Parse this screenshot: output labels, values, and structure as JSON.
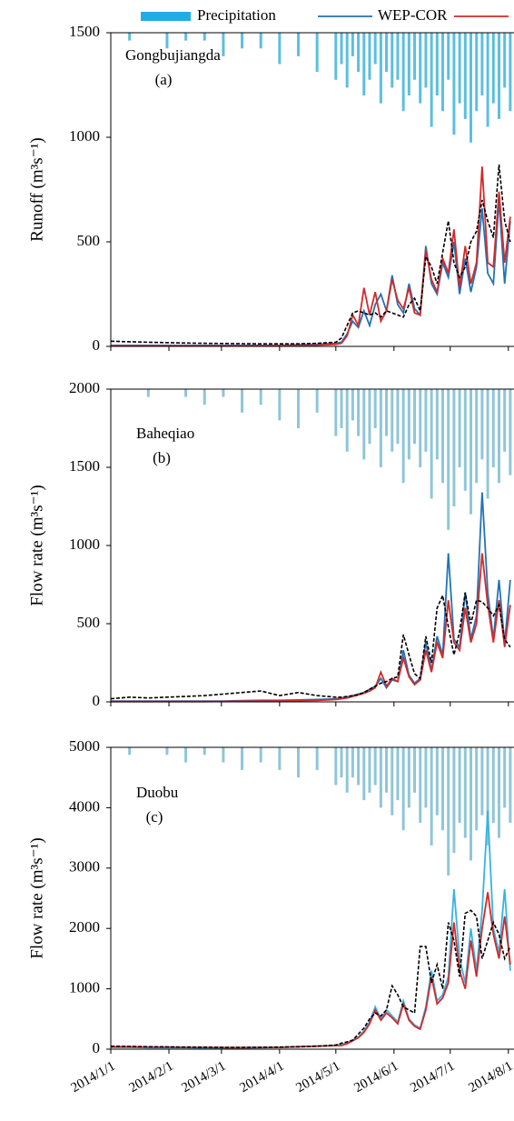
{
  "chart_data": [
    {
      "type": "line",
      "title": "Gongbujiangda",
      "subtitle": "(a)",
      "y_label": "Runoff (m³s⁻¹)",
      "ylim": [
        0,
        1500
      ],
      "yticks": [
        0,
        500,
        1000,
        1500
      ],
      "y2lim": [
        0,
        40
      ],
      "y2_inverted": true,
      "x": [
        "2014/1/1",
        "2014/1/11",
        "2014/1/21",
        "2014/1/31",
        "2014/2/10",
        "2014/2/20",
        "2014/3/2",
        "2014/3/12",
        "2014/3/22",
        "2014/4/1",
        "2014/4/11",
        "2014/4/21",
        "2014/5/1",
        "2014/5/4",
        "2014/5/7",
        "2014/5/10",
        "2014/5/13",
        "2014/5/16",
        "2014/5/19",
        "2014/5/22",
        "2014/5/25",
        "2014/5/28",
        "2014/5/31",
        "2014/6/3",
        "2014/6/6",
        "2014/6/9",
        "2014/6/12",
        "2014/6/15",
        "2014/6/18",
        "2014/6/21",
        "2014/6/24",
        "2014/6/27",
        "2014/6/30",
        "2014/7/3",
        "2014/7/6",
        "2014/7/9",
        "2014/7/12",
        "2014/7/15",
        "2014/7/18",
        "2014/7/21",
        "2014/7/24",
        "2014/7/27",
        "2014/7/30",
        "2014/8/2"
      ],
      "series": [
        {
          "name": "Precipitation",
          "type": "bar",
          "axis": "y2",
          "color": "#5bbfe0",
          "values": [
            0,
            1,
            0,
            2,
            1,
            1,
            3,
            2,
            2,
            4,
            3,
            5,
            6,
            4,
            7,
            3,
            5,
            8,
            6,
            4,
            9,
            5,
            7,
            6,
            10,
            8,
            6,
            9,
            7,
            12,
            8,
            10,
            6,
            13,
            9,
            11,
            14,
            10,
            8,
            12,
            9,
            11,
            7,
            10
          ]
        },
        {
          "name": "WEP-COR",
          "color": "#2273b5",
          "values": [
            5,
            5,
            5,
            5,
            5,
            5,
            5,
            5,
            5,
            5,
            8,
            10,
            15,
            20,
            60,
            120,
            90,
            170,
            100,
            200,
            250,
            170,
            340,
            200,
            160,
            300,
            180,
            150,
            480,
            300,
            250,
            400,
            330,
            500,
            250,
            420,
            260,
            380,
            660,
            350,
            300,
            700,
            300,
            600
          ]
        },
        {
          "color": "#d42a2a",
          "values": [
            2,
            2,
            2,
            2,
            2,
            2,
            2,
            2,
            2,
            3,
            4,
            6,
            10,
            15,
            50,
            150,
            100,
            280,
            150,
            260,
            120,
            170,
            320,
            220,
            180,
            280,
            160,
            150,
            460,
            320,
            260,
            420,
            350,
            560,
            280,
            480,
            300,
            400,
            860,
            400,
            380,
            740,
            400,
            620
          ]
        },
        {
          "color": "#000000",
          "dashed": true,
          "values": [
            25,
            22,
            20,
            18,
            16,
            15,
            14,
            13,
            12,
            12,
            12,
            15,
            20,
            40,
            100,
            160,
            170,
            160,
            150,
            160,
            140,
            170,
            160,
            150,
            140,
            200,
            230,
            170,
            430,
            380,
            300,
            450,
            600,
            400,
            330,
            380,
            500,
            550,
            700,
            600,
            520,
            870,
            600,
            500
          ]
        }
      ]
    },
    {
      "type": "line",
      "title": "Baheqiao",
      "subtitle": "(b)",
      "y_label": "Flow rate (m³s⁻¹)",
      "ylim": [
        0,
        2000
      ],
      "yticks": [
        0,
        500,
        1000,
        1500,
        2000
      ],
      "y2lim": [
        0,
        40
      ],
      "y2_inverted": true,
      "x": [
        "2014/1/1",
        "2014/1/11",
        "2014/1/21",
        "2014/1/31",
        "2014/2/10",
        "2014/2/20",
        "2014/3/2",
        "2014/3/12",
        "2014/3/22",
        "2014/4/1",
        "2014/4/11",
        "2014/4/21",
        "2014/5/1",
        "2014/5/4",
        "2014/5/7",
        "2014/5/10",
        "2014/5/13",
        "2014/5/16",
        "2014/5/19",
        "2014/5/22",
        "2014/5/25",
        "2014/5/28",
        "2014/5/31",
        "2014/6/3",
        "2014/6/6",
        "2014/6/9",
        "2014/6/12",
        "2014/6/15",
        "2014/6/18",
        "2014/6/21",
        "2014/6/24",
        "2014/6/27",
        "2014/6/30",
        "2014/7/3",
        "2014/7/6",
        "2014/7/9",
        "2014/7/12",
        "2014/7/15",
        "2014/7/18",
        "2014/7/21",
        "2014/7/24",
        "2014/7/27",
        "2014/7/30",
        "2014/8/2"
      ],
      "series": [
        {
          "type": "bar",
          "axis": "y2",
          "color": "#8fc6d8",
          "values": [
            0,
            0,
            1,
            0,
            1,
            2,
            1,
            3,
            2,
            4,
            5,
            3,
            6,
            5,
            8,
            4,
            6,
            9,
            7,
            5,
            10,
            6,
            8,
            7,
            12,
            9,
            7,
            10,
            8,
            14,
            9,
            12,
            18,
            15,
            10,
            13,
            16,
            12,
            9,
            14,
            10,
            12,
            8,
            11
          ]
        },
        {
          "color": "#2273b5",
          "values": [
            5,
            5,
            5,
            5,
            5,
            5,
            5,
            8,
            10,
            10,
            12,
            15,
            20,
            25,
            30,
            40,
            50,
            60,
            80,
            100,
            150,
            90,
            140,
            130,
            330,
            170,
            120,
            150,
            380,
            200,
            420,
            300,
            950,
            400,
            350,
            700,
            400,
            550,
            1340,
            700,
            400,
            780,
            370,
            780
          ]
        },
        {
          "color": "#d42a2a",
          "values": [
            2,
            2,
            2,
            2,
            2,
            2,
            3,
            4,
            5,
            6,
            8,
            10,
            15,
            20,
            25,
            35,
            45,
            55,
            70,
            90,
            190,
            100,
            150,
            130,
            280,
            160,
            110,
            140,
            330,
            190,
            380,
            280,
            650,
            380,
            330,
            600,
            380,
            500,
            950,
            620,
            380,
            650,
            350,
            620
          ]
        },
        {
          "color": "#000000",
          "dashed": true,
          "values": [
            20,
            30,
            25,
            30,
            35,
            40,
            50,
            60,
            70,
            40,
            60,
            40,
            30,
            30,
            35,
            40,
            45,
            60,
            80,
            100,
            120,
            130,
            150,
            160,
            430,
            300,
            180,
            150,
            420,
            250,
            600,
            680,
            480,
            300,
            450,
            700,
            500,
            650,
            640,
            600,
            550,
            620,
            400,
            350
          ]
        }
      ]
    },
    {
      "type": "line",
      "title": "Duobu",
      "subtitle": "(c)",
      "y_label": "Flow rate (m³s⁻¹)",
      "ylim": [
        0,
        5000
      ],
      "yticks": [
        0,
        1000,
        2000,
        3000,
        4000,
        5000
      ],
      "y2lim": [
        0,
        40
      ],
      "y2_inverted": true,
      "xlim": [
        "2014/1/1",
        "2014/8/4"
      ],
      "xticks": [
        "2014/1/1",
        "2014/2/1",
        "2014/3/1",
        "2014/4/1",
        "2014/5/1",
        "2014/6/1",
        "2014/7/1",
        "2014/8/1"
      ],
      "x": [
        "2014/1/1",
        "2014/1/11",
        "2014/1/21",
        "2014/1/31",
        "2014/2/10",
        "2014/2/20",
        "2014/3/2",
        "2014/3/12",
        "2014/3/22",
        "2014/4/1",
        "2014/4/11",
        "2014/4/21",
        "2014/5/1",
        "2014/5/4",
        "2014/5/7",
        "2014/5/10",
        "2014/5/13",
        "2014/5/16",
        "2014/5/19",
        "2014/5/22",
        "2014/5/25",
        "2014/5/28",
        "2014/5/31",
        "2014/6/3",
        "2014/6/6",
        "2014/6/9",
        "2014/6/12",
        "2014/6/15",
        "2014/6/18",
        "2014/6/21",
        "2014/6/24",
        "2014/6/27",
        "2014/6/30",
        "2014/7/3",
        "2014/7/6",
        "2014/7/9",
        "2014/7/12",
        "2014/7/15",
        "2014/7/18",
        "2014/7/21",
        "2014/7/24",
        "2014/7/27",
        "2014/7/30",
        "2014/8/2"
      ],
      "series": [
        {
          "type": "bar",
          "axis": "y2",
          "color": "#8fc6d8",
          "values": [
            0,
            1,
            0,
            1,
            2,
            1,
            2,
            3,
            2,
            3,
            4,
            3,
            5,
            4,
            6,
            4,
            5,
            7,
            6,
            5,
            8,
            6,
            9,
            7,
            11,
            8,
            6,
            10,
            8,
            13,
            9,
            11,
            17,
            14,
            10,
            12,
            15,
            11,
            9,
            13,
            10,
            12,
            8,
            10
          ]
        },
        {
          "color": "#36b4e0",
          "values": [
            30,
            30,
            25,
            25,
            25,
            20,
            20,
            20,
            25,
            30,
            40,
            50,
            60,
            80,
            100,
            150,
            200,
            300,
            450,
            700,
            500,
            650,
            550,
            450,
            800,
            500,
            400,
            350,
            700,
            1300,
            800,
            900,
            1200,
            2650,
            1500,
            1100,
            2000,
            1300,
            2300,
            3950,
            2000,
            1600,
            2650,
            1300
          ]
        },
        {
          "color": "#d42a2a",
          "values": [
            40,
            40,
            35,
            35,
            30,
            30,
            25,
            25,
            28,
            30,
            40,
            50,
            60,
            60,
            90,
            140,
            190,
            280,
            420,
            650,
            480,
            600,
            520,
            420,
            750,
            480,
            380,
            330,
            650,
            1200,
            750,
            850,
            1100,
            2100,
            1300,
            1000,
            1800,
            1200,
            2000,
            2600,
            1900,
            1500,
            2200,
            1400
          ]
        },
        {
          "color": "#000000",
          "dashed": true,
          "values": [
            50,
            45,
            40,
            38,
            35,
            33,
            30,
            30,
            32,
            35,
            40,
            50,
            70,
            100,
            120,
            150,
            250,
            350,
            500,
            600,
            550,
            650,
            1050,
            900,
            700,
            650,
            600,
            1700,
            1700,
            1100,
            1400,
            1000,
            2100,
            1800,
            1200,
            2250,
            2300,
            2200,
            1500,
            1800,
            2100,
            1900,
            1500,
            1700
          ]
        }
      ]
    }
  ]
}
